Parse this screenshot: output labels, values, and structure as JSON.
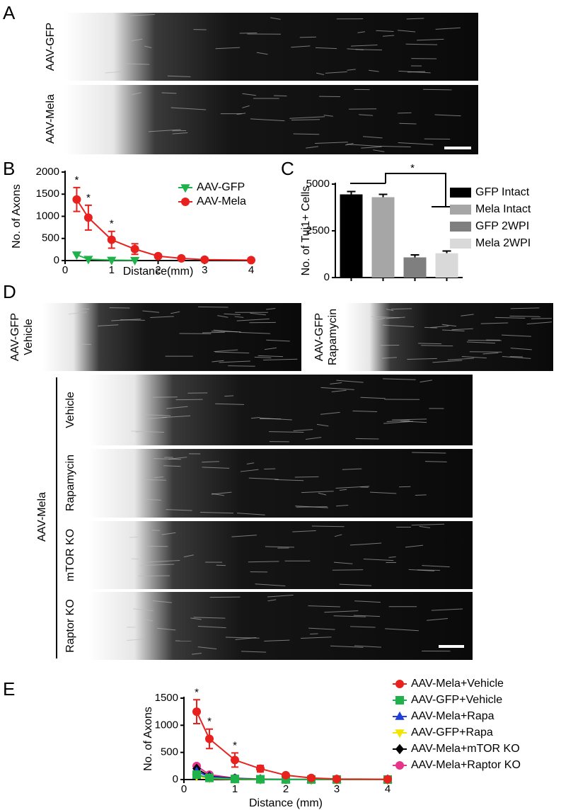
{
  "panel_a": {
    "letter": "A",
    "labels": [
      "AAV-GFP",
      "AAV-Mela"
    ]
  },
  "panel_d": {
    "letter": "D",
    "top": [
      {
        "line1": "AAV-GFP",
        "line2": "Vehicle"
      },
      {
        "line1": "AAV-GFP",
        "line2": "Rapamycin"
      }
    ],
    "group_label": "AAV-Mela",
    "rows": [
      "Vehicle",
      "Rapamycin",
      "mTOR KO",
      "Raptor KO"
    ]
  },
  "chart_data": [
    {
      "panel": "B",
      "type": "line",
      "xlabel": "Distance(mm)",
      "ylabel": "No. of Axons",
      "x": [
        0.25,
        0.5,
        1,
        1.5,
        2,
        2.5,
        3,
        4
      ],
      "xlim": [
        0,
        4
      ],
      "xticks": [
        0,
        1,
        2,
        3,
        4
      ],
      "ylim": [
        0,
        2000
      ],
      "yticks": [
        0,
        500,
        1000,
        1500,
        2000
      ],
      "significance": [
        "*",
        "*",
        "*",
        null,
        null,
        null,
        null,
        null
      ],
      "series": [
        {
          "name": "AAV-GFP",
          "color": "#1fb24a",
          "marker": "triangle-down",
          "values": [
            130,
            30,
            10,
            5,
            null,
            null,
            null,
            null
          ]
        },
        {
          "name": "AAV-Mela",
          "color": "#e8211e",
          "marker": "circle",
          "values": [
            1380,
            970,
            470,
            260,
            100,
            50,
            20,
            10
          ],
          "errors": [
            270,
            280,
            190,
            120,
            40,
            20,
            10,
            5
          ]
        }
      ]
    },
    {
      "panel": "C",
      "type": "bar",
      "ylabel": "No. of Tuj1+ Cells",
      "categories": [
        "GFP Intact",
        "Mela Intact",
        "GFP 2WPI",
        "Mela 2WPI"
      ],
      "values": [
        4450,
        4300,
        1080,
        1300
      ],
      "errors": [
        150,
        150,
        130,
        120
      ],
      "colors": [
        "#000000",
        "#a6a6a6",
        "#7f7f7f",
        "#d9d9d9"
      ],
      "ylim": [
        0,
        5000
      ],
      "yticks": [
        0,
        2500,
        5000
      ],
      "significance": "*"
    },
    {
      "panel": "E",
      "type": "line",
      "xlabel": "Distance (mm)",
      "ylabel": "No. of Axons",
      "x": [
        0.25,
        0.5,
        1,
        1.5,
        2,
        2.5,
        3,
        4
      ],
      "xlim": [
        0,
        4
      ],
      "xticks": [
        0,
        1,
        2,
        3,
        4
      ],
      "ylim": [
        0,
        1500
      ],
      "yticks": [
        0,
        500,
        1000,
        1500
      ],
      "significance": [
        "*",
        "*",
        "*",
        null,
        null,
        null,
        null,
        null
      ],
      "series": [
        {
          "name": "AAV-Mela+Vehicle",
          "color": "#e8211e",
          "marker": "circle",
          "values": [
            1250,
            750,
            360,
            200,
            80,
            30,
            10,
            5
          ],
          "errors": [
            220,
            180,
            130,
            60,
            20,
            10,
            5,
            3
          ]
        },
        {
          "name": "AAV-GFP+Vehicle",
          "color": "#1fb24a",
          "marker": "square",
          "values": [
            90,
            30,
            10,
            5,
            2,
            1,
            1,
            0
          ]
        },
        {
          "name": "AAV-Mela+Rapa",
          "color": "#1f3fd8",
          "marker": "triangle",
          "values": [
            150,
            50,
            15,
            5,
            2,
            1,
            1,
            0
          ]
        },
        {
          "name": "AAV-GFP+Rapa",
          "color": "#f2e600",
          "marker": "triangle-down",
          "values": [
            60,
            20,
            5,
            2,
            1,
            1,
            0,
            0
          ]
        },
        {
          "name": "AAV-Mela+mTOR KO",
          "color": "#000000",
          "marker": "diamond",
          "values": [
            200,
            60,
            20,
            5,
            2,
            1,
            1,
            0
          ]
        },
        {
          "name": "AAV-Mela+Raptor KO",
          "color": "#e8338a",
          "marker": "circle",
          "values": [
            250,
            90,
            25,
            10,
            3,
            1,
            1,
            0
          ]
        }
      ]
    }
  ]
}
